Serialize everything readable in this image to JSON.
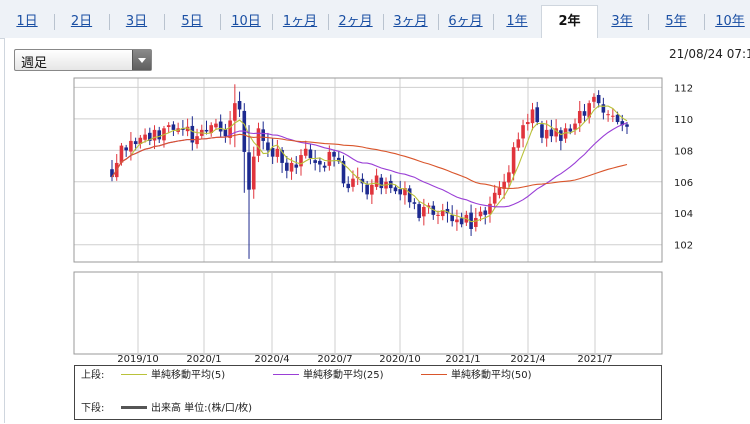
{
  "tabs": [
    {
      "label": "1日"
    },
    {
      "label": "2日"
    },
    {
      "label": "3日"
    },
    {
      "label": "5日"
    },
    {
      "label": "10日"
    },
    {
      "label": "1ヶ月"
    },
    {
      "label": "2ヶ月"
    },
    {
      "label": "3ヶ月"
    },
    {
      "label": "6ヶ月"
    },
    {
      "label": "1年"
    },
    {
      "label": "2年",
      "active": true
    },
    {
      "label": "3年"
    },
    {
      "label": "5年"
    },
    {
      "label": "10年"
    }
  ],
  "interval_select": {
    "value": "週足"
  },
  "timestamp": "21/08/24 07:1",
  "legend": {
    "upper_label": "上段:",
    "lower_label": "下段:",
    "series": [
      {
        "name": "単純移動平均(5)",
        "color": "#b9c23a"
      },
      {
        "name": "単純移動平均(25)",
        "color": "#9a3fd6"
      },
      {
        "name": "単純移動平均(50)",
        "color": "#d9552b"
      }
    ],
    "volume": "出来高 単位:(株/口/枚)"
  },
  "chart_data": {
    "type": "candlestick",
    "interval": "weekly",
    "y_ticks": [
      102,
      104,
      106,
      108,
      110,
      112
    ],
    "ylim": [
      100.9,
      112.6
    ],
    "x_tick_labels": [
      "2019/10",
      "2020/1",
      "2020/4",
      "2020/7",
      "2020/10",
      "2021/1",
      "2021/4",
      "2021/7"
    ],
    "grid": true,
    "up_color": "#e0343c",
    "down_color": "#1d2a8f",
    "close_series": [
      106.3,
      107.2,
      108.3,
      108.0,
      108.6,
      108.4,
      108.8,
      109.0,
      108.6,
      109.3,
      108.7,
      109.4,
      109.6,
      109.3,
      109.4,
      109.3,
      109.5,
      108.5,
      108.9,
      109.3,
      109.2,
      109.6,
      109.7,
      109.2,
      108.9,
      109.9,
      111.0,
      110.6,
      107.9,
      105.5,
      107.6,
      109.4,
      108.6,
      108.0,
      107.6,
      108.1,
      107.2,
      106.7,
      107.2,
      106.9,
      107.7,
      108.1,
      107.5,
      107.2,
      107.1,
      106.9,
      107.9,
      107.6,
      107.3,
      105.9,
      105.6,
      106.2,
      106.3,
      105.9,
      105.2,
      105.8,
      106.4,
      105.6,
      106.0,
      105.6,
      105.4,
      105.2,
      105.6,
      104.7,
      104.6,
      103.7,
      104.4,
      104.5,
      103.9,
      103.9,
      104.2,
      104.0,
      103.5,
      103.6,
      103.3,
      103.9,
      103.0,
      103.7,
      104.1,
      103.9,
      104.6,
      105.3,
      105.6,
      106.0,
      106.6,
      108.2,
      108.7,
      109.6,
      109.8,
      110.6,
      109.8,
      108.8,
      109.3,
      108.9,
      109.4,
      108.6,
      109.4,
      109.2,
      109.7,
      110.5,
      110.2,
      111.0,
      111.4,
      111.0,
      110.4,
      110.3,
      110.2,
      109.8,
      109.6,
      109.5
    ]
  }
}
